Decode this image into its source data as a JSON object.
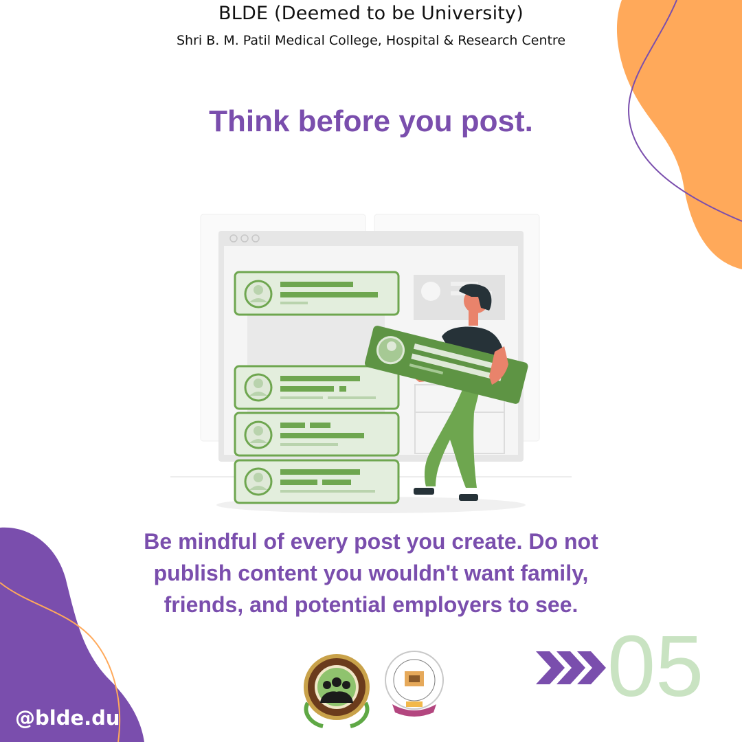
{
  "header": {
    "university": "BLDE (Deemed to be University)",
    "college": "Shri B. M. Patil Medical College, Hospital & Research Centre"
  },
  "headline": "Think before you post.",
  "body": {
    "lines": [
      "Be mindful of every post you create. Do not",
      "publish content you wouldn't want family,",
      "friends, and potential employers to see."
    ]
  },
  "footer": {
    "handle": "@blde.du",
    "slide_number": "05",
    "logos": [
      "blde-university-seal",
      "medical-college-emblem"
    ]
  },
  "colors": {
    "purple": "#7a4ead",
    "orange": "#ffa95a",
    "green": "#6ea64f",
    "pale_green": "#c9e3c2"
  }
}
